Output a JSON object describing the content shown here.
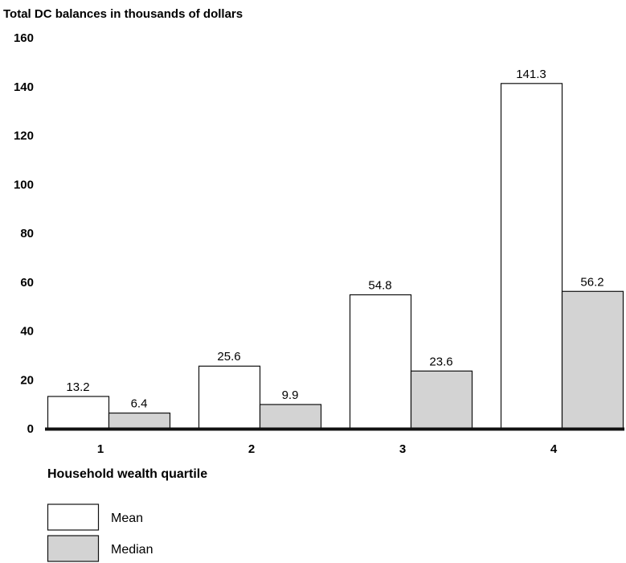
{
  "chart_data": {
    "type": "bar",
    "title": "",
    "ylabel": "Total DC balances in thousands of dollars",
    "xlabel": "Household wealth quartile",
    "categories": [
      "1",
      "2",
      "3",
      "4"
    ],
    "ylim": [
      0,
      160
    ],
    "yticks": [
      "0",
      "20",
      "40",
      "60",
      "80",
      "100",
      "120",
      "140",
      "160"
    ],
    "grid": false,
    "legend_position": "bottom-left",
    "series": [
      {
        "name": "Mean",
        "values": [
          13.2,
          25.6,
          54.8,
          141.3
        ],
        "labels": [
          "13.2",
          "25.6",
          "54.8",
          "141.3"
        ],
        "color": "#ffffff"
      },
      {
        "name": "Median",
        "values": [
          6.4,
          9.9,
          23.6,
          56.2
        ],
        "labels": [
          "6.4",
          "9.9",
          "23.6",
          "56.2"
        ],
        "color": "#d3d3d3"
      }
    ]
  }
}
